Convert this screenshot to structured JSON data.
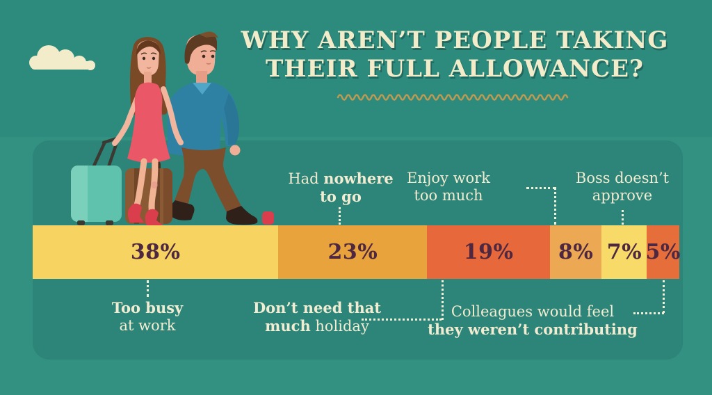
{
  "title": {
    "line1": "WHY AREN’T PEOPLE TAKING",
    "line2": "THEIR FULL ALLOWANCE?"
  },
  "chart_data": {
    "type": "bar",
    "subtype": "horizontal-stacked-percentage",
    "title": "Why aren’t people taking their full allowance?",
    "unit": "%",
    "total": 100,
    "legend_position": "callouts-above-and-below",
    "segments": [
      {
        "label": "Too busy at work",
        "value": 38,
        "pct": "38%",
        "color": "#f7d462",
        "callout": "below"
      },
      {
        "label": "Had nowhere to go",
        "value": 23,
        "pct": "23%",
        "color": "#e8a33c",
        "callout": "above"
      },
      {
        "label": "Don’t need that much holiday",
        "value": 19,
        "pct": "19%",
        "color": "#e7683a",
        "callout": "below"
      },
      {
        "label": "Enjoy work too much",
        "value": 8,
        "pct": "8%",
        "color": "#eca853",
        "callout": "above"
      },
      {
        "label": "Boss doesn’t approve",
        "value": 7,
        "pct": "7%",
        "color": "#f8da68",
        "callout": "above"
      },
      {
        "label": "Colleagues would feel they weren’t contributing",
        "value": 5,
        "pct": "5%",
        "color": "#e56e3a",
        "callout": "below"
      }
    ]
  },
  "callouts": {
    "had_nowhere": {
      "normal": "Had ",
      "bold": "nowhere",
      "line2": "to go"
    },
    "enjoy": {
      "line1": "Enjoy work",
      "line2": "too much"
    },
    "boss": {
      "line1": "Boss doesn’t",
      "line2": "approve"
    },
    "too_busy": {
      "line1": "Too busy",
      "line2": "at work"
    },
    "dont_need": {
      "line1": "Don’t need that",
      "line2_bold": "much",
      "line2_rest": " holiday"
    },
    "colleagues": {
      "line1": "Colleagues would feel",
      "line2": "they weren’t contributing"
    }
  },
  "colors": {
    "sky": "#2d8b7e",
    "floor": "#339181",
    "panel": "#2d8478",
    "title_text": "#f2ecca",
    "squiggle": "#bf9a52",
    "label_text": "#f1ecd2",
    "percent_text": "#4e2741",
    "connector": "#f2eed8"
  },
  "illustration": {
    "description": "Flat-style couple walking with luggage: woman in red dress pulling a teal suitcase, man in blue sweater and brown trousers, brown suitcase, cream cloud",
    "icons": [
      "cloud-icon",
      "teal-suitcase-icon",
      "brown-suitcase-icon",
      "woman-traveler-icon",
      "man-traveler-icon",
      "red-bag-icon"
    ]
  }
}
